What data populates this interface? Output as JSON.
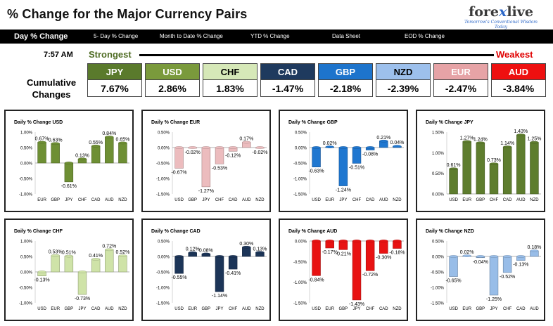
{
  "header": {
    "title": "% Change for the Major Currency Pairs",
    "logo_text_1": "fore",
    "logo_text_2": "x",
    "logo_text_3": "live",
    "logo_tagline": "Tomorrow's Conventional Wisdom Today"
  },
  "tabs": [
    {
      "label": "Day % Change",
      "active": true
    },
    {
      "label": "5- Day % Change",
      "active": false
    },
    {
      "label": "Month to Date % Change",
      "active": false
    },
    {
      "label": "YTD % Change",
      "active": false
    },
    {
      "label": "Data Sheet",
      "active": false
    },
    {
      "label": "EOD % Change",
      "active": false
    }
  ],
  "time": "7:57 AM",
  "strongest_label": "Strongest",
  "weakest_label": "Weakest",
  "cumulative_label_1": "Cumulative",
  "cumulative_label_2": "Changes",
  "ranking": [
    {
      "code": "JPY",
      "value": "7.67%",
      "color": "#5a7a2c",
      "text_color": "#ffffff"
    },
    {
      "code": "USD",
      "value": "2.86%",
      "color": "#7a9a3c",
      "text_color": "#ffffff"
    },
    {
      "code": "CHF",
      "value": "1.83%",
      "color": "#d6e8b8",
      "text_color": "#000000"
    },
    {
      "code": "CAD",
      "value": "-1.47%",
      "color": "#1f3a5e",
      "text_color": "#ffffff"
    },
    {
      "code": "GBP",
      "value": "-2.18%",
      "color": "#1d74cc",
      "text_color": "#ffffff"
    },
    {
      "code": "NZD",
      "value": "-2.39%",
      "color": "#9dc0ec",
      "text_color": "#000000"
    },
    {
      "code": "EUR",
      "value": "-2.47%",
      "color": "#e6a3a6",
      "text_color": "#ffffff"
    },
    {
      "code": "AUD",
      "value": "-3.84%",
      "color": "#ee1010",
      "text_color": "#ffffff"
    }
  ],
  "chart_data": [
    {
      "type": "bar",
      "title": "Daily % Change USD",
      "color": "#6e8f34",
      "categories": [
        "EUR",
        "GBP",
        "JPY",
        "CHF",
        "CAD",
        "AUD",
        "NZD"
      ],
      "values": [
        0.67,
        0.63,
        -0.61,
        0.13,
        0.55,
        0.84,
        0.65
      ],
      "labels": [
        "0.67%",
        "0.63%",
        "-0.61%",
        "0.13%",
        "0.55%",
        "0.84%",
        "0.65%"
      ],
      "ylim": [
        -1.0,
        1.0
      ],
      "ticks": [
        "1.00%",
        "0.50%",
        "0.00%",
        "-0.50%",
        "-1.00%"
      ]
    },
    {
      "type": "bar",
      "title": "Daily % Change EUR",
      "color": "#ecbcbe",
      "categories": [
        "USD",
        "GBP",
        "JPY",
        "CHF",
        "CAD",
        "AUD",
        "NZD"
      ],
      "values": [
        -0.67,
        -0.02,
        -1.27,
        -0.53,
        -0.12,
        0.17,
        -0.02
      ],
      "labels": [
        "-0.67%",
        "-0.02%",
        "-1.27%",
        "-0.53%",
        "-0.12%",
        "0.17%",
        "-0.02%"
      ],
      "ylim": [
        -1.5,
        0.5
      ],
      "ticks": [
        "0.50%",
        "0.00%",
        "-0.50%",
        "-1.00%",
        "-1.50%"
      ]
    },
    {
      "type": "bar",
      "title": "Daily % Change GBP",
      "color": "#1f77d0",
      "categories": [
        "USD",
        "EUR",
        "JPY",
        "CHF",
        "CAD",
        "AUD",
        "NZD"
      ],
      "values": [
        -0.63,
        0.02,
        -1.24,
        -0.51,
        -0.08,
        0.21,
        0.04
      ],
      "labels": [
        "-0.63%",
        "0.02%",
        "-1.24%",
        "-0.51%",
        "-0.08%",
        "0.21%",
        "0.04%"
      ],
      "ylim": [
        -1.5,
        0.5
      ],
      "ticks": [
        "0.50%",
        "0.00%",
        "-0.50%",
        "-1.00%",
        "-1.50%"
      ]
    },
    {
      "type": "bar",
      "title": "Daily % Change JPY",
      "color": "#5e7d2e",
      "categories": [
        "USD",
        "EUR",
        "GBP",
        "CHF",
        "CAD",
        "AUD",
        "NZD"
      ],
      "values": [
        0.61,
        1.27,
        1.24,
        0.73,
        1.14,
        1.43,
        1.25
      ],
      "labels": [
        "0.61%",
        "1.27%",
        "1.24%",
        "0.73%",
        "1.14%",
        "1.43%",
        "1.25%"
      ],
      "ylim": [
        0.0,
        1.5
      ],
      "ticks": [
        "1.50%",
        "1.00%",
        "0.50%",
        "0.00%"
      ]
    },
    {
      "type": "bar",
      "title": "Daily % Change CHF",
      "color": "#cfe3a8",
      "categories": [
        "USD",
        "EUR",
        "GBP",
        "JPY",
        "CAD",
        "AUD",
        "NZD"
      ],
      "values": [
        -0.13,
        0.53,
        0.51,
        -0.73,
        0.41,
        0.72,
        0.52
      ],
      "labels": [
        "-0.13%",
        "0.53%",
        "0.51%",
        "-0.73%",
        "0.41%",
        "0.72%",
        "0.52%"
      ],
      "ylim": [
        -1.0,
        1.0
      ],
      "ticks": [
        "1.00%",
        "0.50%",
        "0.00%",
        "-0.50%",
        "-1.00%"
      ]
    },
    {
      "type": "bar",
      "title": "Daily % Change CAD",
      "color": "#1c3558",
      "categories": [
        "USD",
        "EUR",
        "GBP",
        "JPY",
        "CHF",
        "AUD",
        "NZD"
      ],
      "values": [
        -0.55,
        0.12,
        0.08,
        -1.14,
        -0.41,
        0.3,
        0.13
      ],
      "labels": [
        "-0.55%",
        "0.12%",
        "0.08%",
        "-1.14%",
        "-0.41%",
        "0.30%",
        "0.13%"
      ],
      "ylim": [
        -1.5,
        0.5
      ],
      "ticks": [
        "0.50%",
        "0.00%",
        "-0.50%",
        "-1.00%",
        "-1.50%"
      ]
    },
    {
      "type": "bar",
      "title": "Daily % Change AUD",
      "color": "#e81212",
      "categories": [
        "USD",
        "EUR",
        "GBP",
        "JPY",
        "CHF",
        "CAD",
        "NZD"
      ],
      "values": [
        -0.84,
        -0.17,
        -0.21,
        -1.43,
        -0.72,
        -0.3,
        -0.18
      ],
      "labels": [
        "-0.84%",
        "-0.17%",
        "-0.21%",
        "-1.43%",
        "-0.72%",
        "-0.30%",
        "-0.18%"
      ],
      "ylim": [
        -1.5,
        0.0
      ],
      "ticks": [
        "0.00%",
        "-0.50%",
        "-1.00%",
        "-1.50%"
      ]
    },
    {
      "type": "bar",
      "title": "Daily % Change NZD",
      "color": "#98bde8",
      "categories": [
        "USD",
        "EUR",
        "GBP",
        "JPY",
        "CHF",
        "CAD",
        "AUD"
      ],
      "values": [
        -0.65,
        0.02,
        -0.04,
        -1.25,
        -0.52,
        -0.13,
        0.18
      ],
      "labels": [
        "-0.65%",
        "0.02%",
        "-0.04%",
        "-1.25%",
        "-0.52%",
        "-0.13%",
        "0.18%"
      ],
      "ylim": [
        -1.5,
        0.5
      ],
      "ticks": [
        "0.50%",
        "0.00%",
        "-0.50%",
        "-1.00%",
        "-1.50%"
      ]
    }
  ]
}
